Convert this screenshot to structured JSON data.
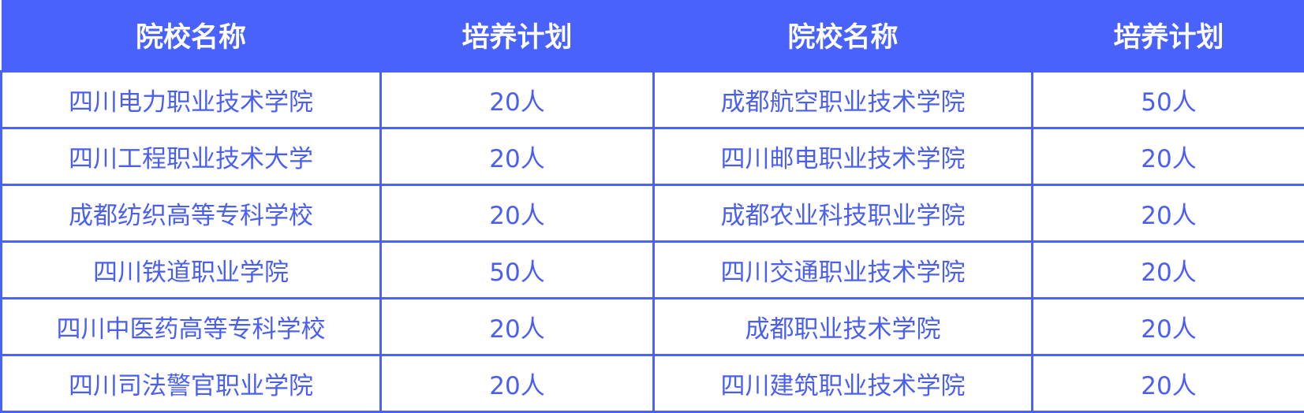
{
  "colors": {
    "header_bg": "#4a62fc",
    "text": "#4a5ff0",
    "border": "#4a62fc"
  },
  "headers": [
    "院校名称",
    "培养计划",
    "院校名称",
    "培养计划"
  ],
  "rows": [
    [
      "四川电力职业技术学院",
      "20人",
      "成都航空职业技术学院",
      "50人"
    ],
    [
      "四川工程职业技术大学",
      "20人",
      "四川邮电职业技术学院",
      "20人"
    ],
    [
      "成都纺织高等专科学校",
      "20人",
      "成都农业科技职业学院",
      "20人"
    ],
    [
      "四川铁道职业学院",
      "50人",
      "四川交通职业技术学院",
      "20人"
    ],
    [
      "四川中医药高等专科学校",
      "20人",
      "成都职业技术学院",
      "20人"
    ],
    [
      "四川司法警官职业学院",
      "20人",
      "四川建筑职业技术学院",
      "20人"
    ]
  ]
}
